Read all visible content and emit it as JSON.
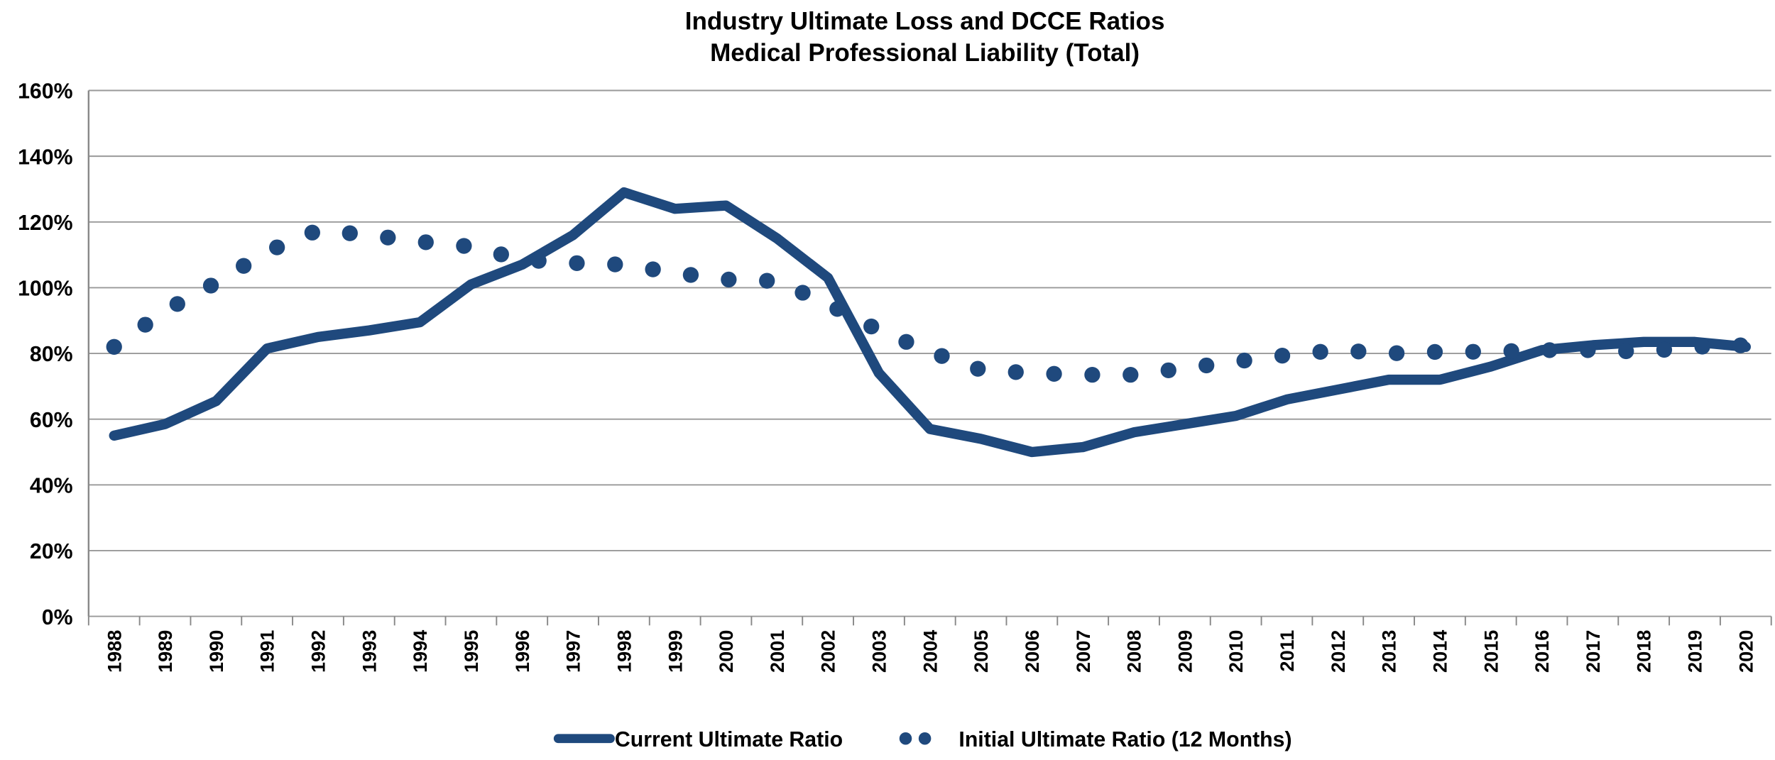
{
  "chart_data": {
    "type": "line",
    "title": "Industry Ultimate Loss and DCCE Ratios",
    "subtitle": "Medical Professional Liability (Total)",
    "categories": [
      "1988",
      "1989",
      "1990",
      "1991",
      "1992",
      "1993",
      "1994",
      "1995",
      "1996",
      "1997",
      "1998",
      "1999",
      "2000",
      "2001",
      "2002",
      "2003",
      "2004",
      "2005",
      "2006",
      "2007",
      "2008",
      "2009",
      "2010",
      "2011",
      "2012",
      "2013",
      "2014",
      "2015",
      "2016",
      "2017",
      "2018",
      "2019",
      "2020"
    ],
    "series": [
      {
        "name": "Current Ultimate Ratio",
        "color": "#1f497d",
        "style": "solid",
        "values": [
          55,
          58.5,
          65.5,
          81.5,
          85,
          87,
          89.5,
          101,
          107,
          116,
          129,
          124,
          125,
          115,
          103,
          74,
          57,
          54,
          50,
          51.5,
          56,
          58.5,
          61,
          66,
          69,
          72,
          72,
          76,
          81,
          82.5,
          83.5,
          83.5,
          82
        ]
      },
      {
        "name": "Initial Ultimate Ratio (12 Months)",
        "color": "#1f497d",
        "style": "dotted",
        "values": [
          82,
          93,
          101.5,
          111,
          117.5,
          116,
          114,
          112.5,
          108.5,
          107.5,
          107,
          104.5,
          102.5,
          102,
          95,
          87,
          80.5,
          75,
          74,
          73.5,
          73.5,
          75.5,
          77.5,
          79.5,
          81,
          80,
          80.5,
          80.5,
          81,
          81,
          80.5,
          82,
          82.5
        ]
      }
    ],
    "ylim": [
      0,
      160
    ],
    "yticks": [
      {
        "value": 0,
        "label": "0%"
      },
      {
        "value": 20,
        "label": "20%"
      },
      {
        "value": 40,
        "label": "40%"
      },
      {
        "value": 60,
        "label": "60%"
      },
      {
        "value": 80,
        "label": "80%"
      },
      {
        "value": 100,
        "label": "100%"
      },
      {
        "value": 120,
        "label": "120%"
      },
      {
        "value": 140,
        "label": "140%"
      },
      {
        "value": 160,
        "label": "160%"
      }
    ],
    "grid": true,
    "legend": "bottom"
  }
}
